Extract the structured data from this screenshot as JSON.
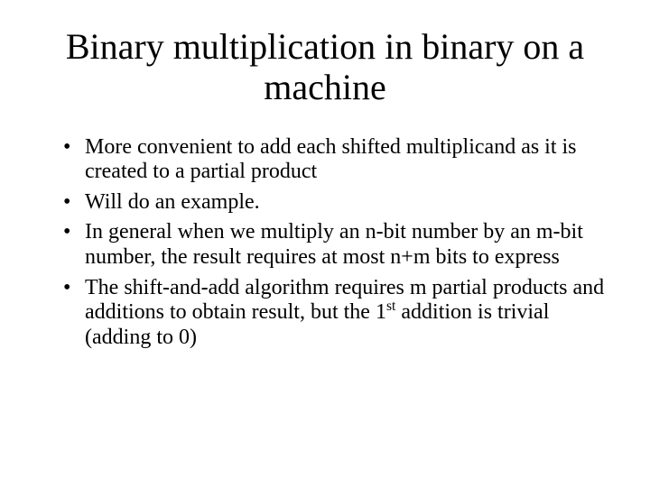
{
  "slide": {
    "title": "Binary multiplication in binary on a machine",
    "title_fontsize": 40,
    "body_fontsize": 24,
    "background_color": "#ffffff",
    "text_color": "#000000",
    "font_family": "Times New Roman",
    "bullets": [
      "More convenient to add each shifted multiplicand as it is created to a partial product",
      "Will do an example.",
      "In general when we multiply an n-bit number by an m-bit number, the result requires at most n+m bits to express",
      "The shift-and-add algorithm requires m partial products and additions to obtain result, but the 1st addition is trivial (adding to 0)"
    ],
    "bullet3_prefix": "The shift-and-add algorithm requires m partial products and additions to obtain result, but the 1",
    "bullet3_super": "st",
    "bullet3_suffix": " addition is trivial (adding to 0)"
  }
}
